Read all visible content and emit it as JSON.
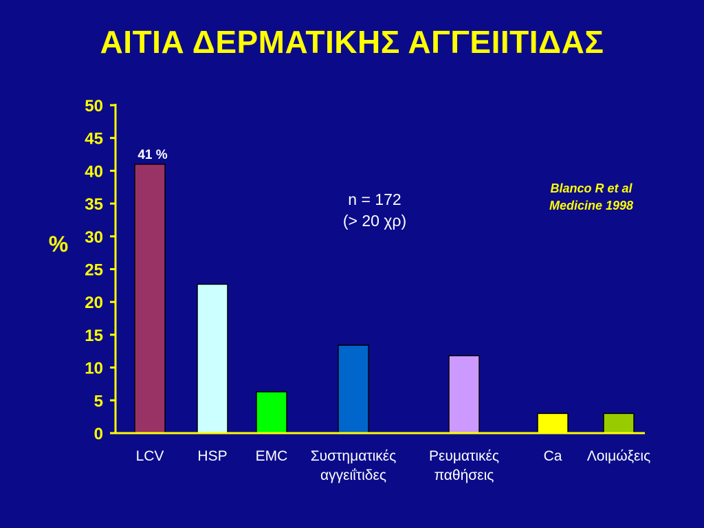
{
  "title": "ΑΙΤΙΑ ΔΕΡΜΑΤΙΚΗΣ ΑΓΓΕΙΙΤΙΔΑΣ",
  "annotation": {
    "line1": "n = 172",
    "line2": "(> 20 χρ)"
  },
  "citation": {
    "line1": "Blanco R et al",
    "line2": "Medicine 1998"
  },
  "colors": {
    "background": "#0b0b8a",
    "axis": "#ffff00",
    "title": "#ffff00"
  },
  "chart_data": {
    "type": "bar",
    "title": "ΑΙΤΙΑ ΔΕΡΜΑΤΙΚΗΣ ΑΓΓΕΙΙΤΙΔΑΣ",
    "xlabel": "",
    "ylabel": "%",
    "ylim": [
      0,
      50
    ],
    "yticks": [
      0,
      5,
      10,
      15,
      20,
      25,
      30,
      35,
      40,
      45,
      50
    ],
    "grid": false,
    "categories": [
      [
        "LCV"
      ],
      [
        "HSP"
      ],
      [
        "EMC"
      ],
      [
        "Συστηματικές",
        "αγγειΐτιδες"
      ],
      [
        "Ρευματικές",
        "παθήσεις"
      ],
      [
        "Ca"
      ],
      [
        "Λοιμώξεις"
      ]
    ],
    "values": [
      41,
      22.7,
      6.3,
      13.4,
      11.8,
      3,
      3
    ],
    "bar_colors": [
      "#993366",
      "#ccffff",
      "#00ff00",
      "#0066cc",
      "#cc99ff",
      "#ffff00",
      "#99cc00"
    ],
    "data_labels": [
      "41 %",
      "",
      "",
      "",
      "",
      "",
      ""
    ]
  }
}
